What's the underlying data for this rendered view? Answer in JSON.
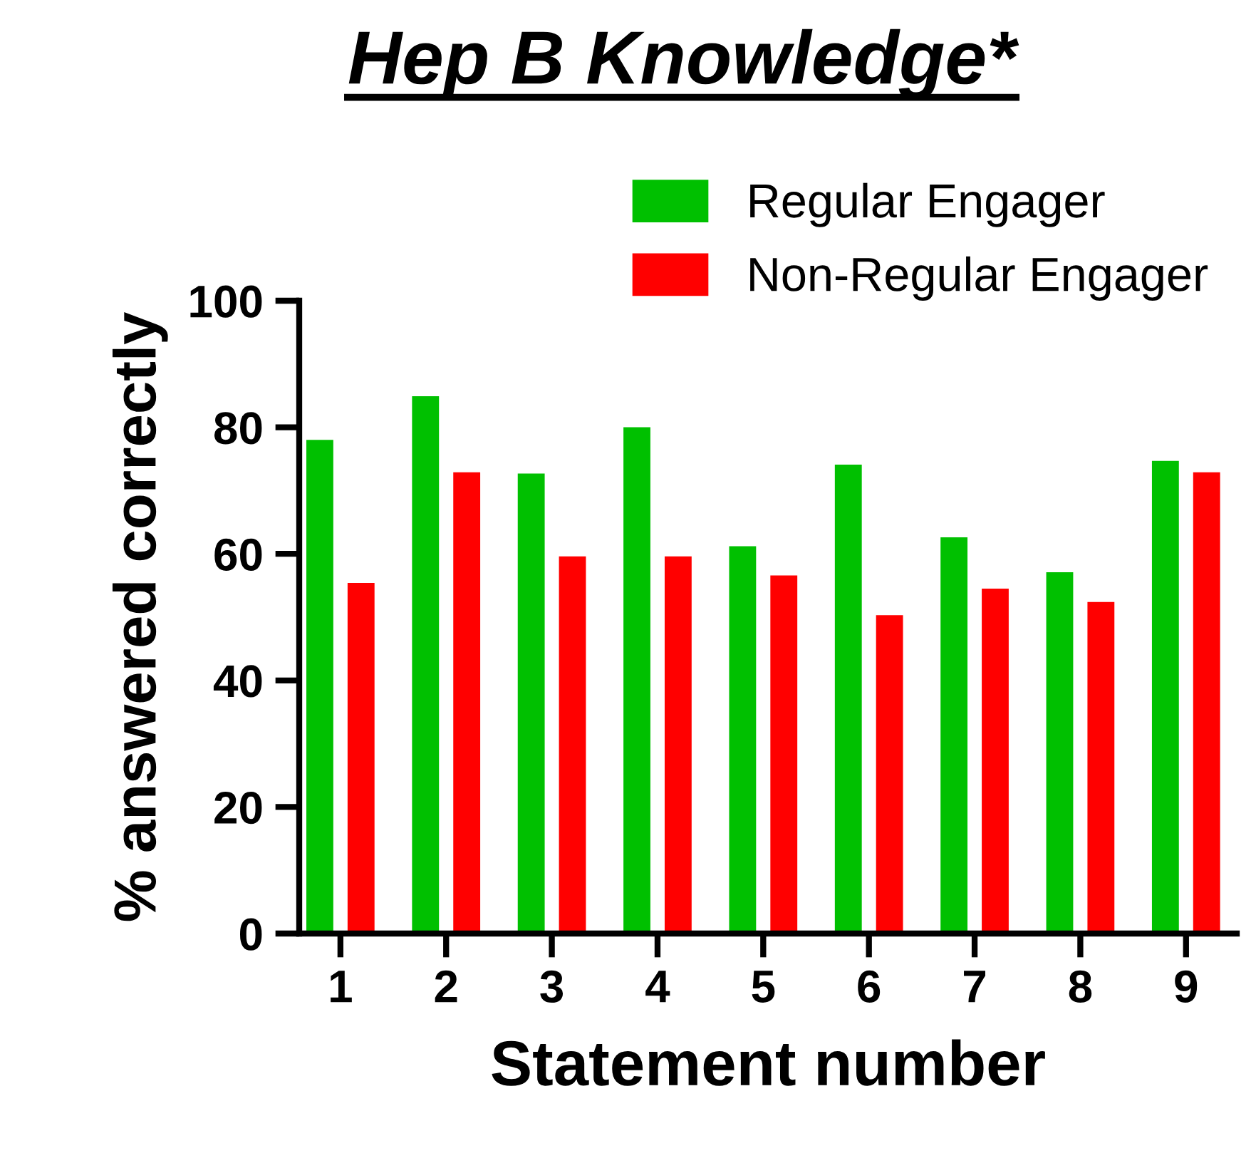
{
  "chart_data": {
    "type": "bar",
    "title": "Hep B Knowledge*",
    "xlabel": "Statement number",
    "ylabel": "% answered correctly",
    "categories": [
      "1",
      "2",
      "3",
      "4",
      "5",
      "6",
      "7",
      "8",
      "9"
    ],
    "series": [
      {
        "name": "Regular Engager",
        "color": "#00c000",
        "values": [
          78.0,
          84.9,
          72.7,
          80.0,
          61.2,
          74.1,
          62.6,
          57.1,
          74.7
        ]
      },
      {
        "name": "Non-Regular Engager",
        "color": "#ff0000",
        "values": [
          55.4,
          72.9,
          59.6,
          59.6,
          56.6,
          50.3,
          54.5,
          52.4,
          72.9
        ]
      }
    ],
    "ylim": [
      0,
      100
    ],
    "yticks": [
      0,
      20,
      40,
      60,
      80,
      100
    ],
    "grid": false,
    "legend": "top right"
  }
}
